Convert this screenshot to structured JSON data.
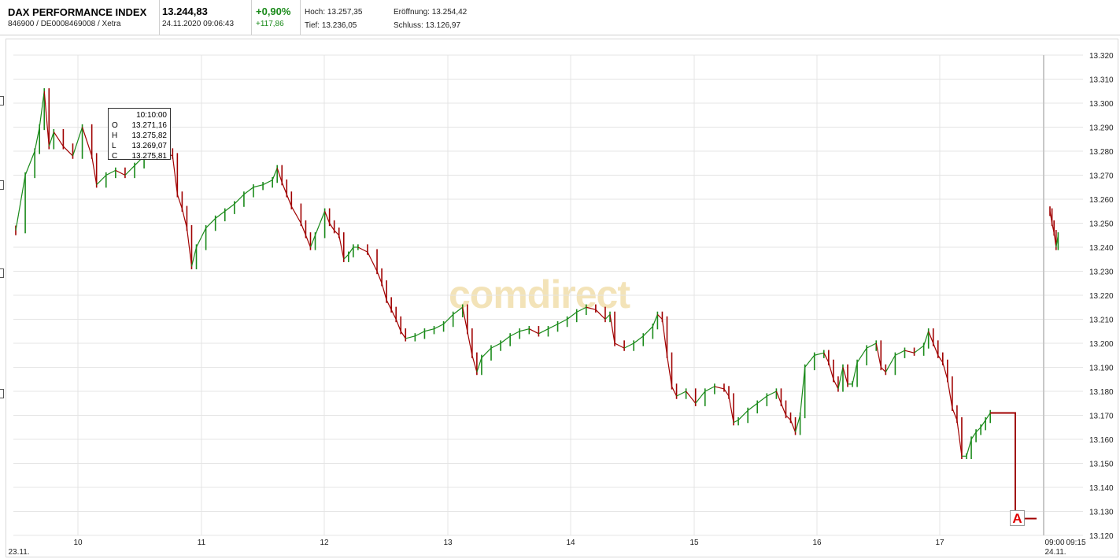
{
  "header": {
    "name": "DAX PERFORMANCE INDEX",
    "ids": "846900 / DE0008469008 / Xetra",
    "price": "13.244,83",
    "datetime": "24.11.2020 09:06:43",
    "change_pct": "+0,90%",
    "change_abs": "+117,86",
    "high": "Hoch: 13.257,35",
    "open": "Eröffnung: 13.254,42",
    "low": "Tief: 13.236,05",
    "close": "Schluss: 13.126,97"
  },
  "tooltip": {
    "time": "10:10:00",
    "o_label": "O",
    "o_value": "13.271,16",
    "h_label": "H",
    "h_value": "13.275,82",
    "l_label": "L",
    "l_value": "13.269,07",
    "c_label": "C",
    "c_value": "13.275,81"
  },
  "watermark": "comdirect",
  "marker": "A",
  "colors": {
    "up": "#1a8a1a",
    "down": "#a00000",
    "grid": "#e4e4e4"
  },
  "chart_data": {
    "type": "line",
    "subtype": "candlestick",
    "ylim": [
      13120,
      13320
    ],
    "y_ticks": [
      "13.120",
      "13.130",
      "13.140",
      "13.150",
      "13.160",
      "13.170",
      "13.180",
      "13.190",
      "13.200",
      "13.210",
      "13.220",
      "13.230",
      "13.240",
      "13.250",
      "13.260",
      "13.270",
      "13.280",
      "13.290",
      "13.300",
      "13.310",
      "13.320"
    ],
    "x_ticks": [
      "23.11.",
      "10",
      "11",
      "12",
      "13",
      "14",
      "15",
      "16",
      "17",
      "09:00",
      "09:15",
      "24.11."
    ],
    "grid": true,
    "series": [
      {
        "session": "23.11.",
        "points": [
          [
            0,
            13247
          ],
          [
            2,
            13270
          ],
          [
            4,
            13280
          ],
          [
            5,
            13290
          ],
          [
            6,
            13305
          ],
          [
            7,
            13282
          ],
          [
            8,
            13288
          ],
          [
            10,
            13282
          ],
          [
            12,
            13278
          ],
          [
            14,
            13290
          ],
          [
            16,
            13278
          ],
          [
            17,
            13266
          ],
          [
            19,
            13270
          ],
          [
            21,
            13272
          ],
          [
            23,
            13270
          ],
          [
            25,
            13274
          ],
          [
            27,
            13278
          ],
          [
            29,
            13280
          ],
          [
            31,
            13280
          ],
          [
            33,
            13278
          ],
          [
            34,
            13262
          ],
          [
            35,
            13256
          ],
          [
            36,
            13248
          ],
          [
            37,
            13232
          ],
          [
            38,
            13240
          ],
          [
            40,
            13248
          ],
          [
            42,
            13252
          ],
          [
            44,
            13255
          ],
          [
            46,
            13258
          ],
          [
            48,
            13262
          ],
          [
            50,
            13265
          ],
          [
            52,
            13266
          ],
          [
            54,
            13268
          ],
          [
            55,
            13273
          ],
          [
            56,
            13267
          ],
          [
            57,
            13262
          ],
          [
            58,
            13257
          ],
          [
            60,
            13250
          ],
          [
            61,
            13245
          ],
          [
            62,
            13240
          ],
          [
            63,
            13245
          ],
          [
            65,
            13255
          ],
          [
            66,
            13250
          ],
          [
            67,
            13247
          ],
          [
            68,
            13245
          ],
          [
            69,
            13235
          ],
          [
            70,
            13237
          ],
          [
            71,
            13240
          ],
          [
            72,
            13240
          ],
          [
            74,
            13238
          ],
          [
            76,
            13230
          ],
          [
            77,
            13225
          ],
          [
            78,
            13218
          ],
          [
            79,
            13214
          ],
          [
            80,
            13210
          ],
          [
            81,
            13205
          ],
          [
            82,
            13202
          ],
          [
            84,
            13203
          ],
          [
            86,
            13205
          ],
          [
            88,
            13206
          ],
          [
            90,
            13208
          ],
          [
            92,
            13212
          ],
          [
            94,
            13215
          ],
          [
            95,
            13205
          ],
          [
            96,
            13195
          ],
          [
            97,
            13188
          ],
          [
            98,
            13194
          ],
          [
            100,
            13198
          ],
          [
            102,
            13200
          ],
          [
            104,
            13203
          ],
          [
            106,
            13205
          ],
          [
            108,
            13206
          ],
          [
            110,
            13204
          ],
          [
            112,
            13206
          ],
          [
            114,
            13208
          ],
          [
            116,
            13210
          ],
          [
            118,
            13213
          ],
          [
            120,
            13215
          ],
          [
            122,
            13214
          ],
          [
            124,
            13210
          ],
          [
            125,
            13212
          ],
          [
            126,
            13200
          ],
          [
            128,
            13198
          ],
          [
            130,
            13200
          ],
          [
            132,
            13203
          ],
          [
            134,
            13207
          ],
          [
            135,
            13212
          ],
          [
            136,
            13210
          ],
          [
            137,
            13195
          ],
          [
            138,
            13182
          ],
          [
            139,
            13178
          ],
          [
            141,
            13180
          ],
          [
            143,
            13175
          ],
          [
            145,
            13180
          ],
          [
            147,
            13182
          ],
          [
            149,
            13181
          ],
          [
            150,
            13178
          ],
          [
            151,
            13167
          ],
          [
            152,
            13168
          ],
          [
            154,
            13172
          ],
          [
            156,
            13175
          ],
          [
            158,
            13178
          ],
          [
            160,
            13180
          ],
          [
            161,
            13175
          ],
          [
            162,
            13170
          ],
          [
            163,
            13168
          ],
          [
            164,
            13163
          ],
          [
            165,
            13170
          ],
          [
            166,
            13190
          ],
          [
            168,
            13195
          ],
          [
            170,
            13196
          ],
          [
            171,
            13192
          ],
          [
            172,
            13185
          ],
          [
            173,
            13181
          ],
          [
            174,
            13190
          ],
          [
            175,
            13183
          ],
          [
            176,
            13183
          ],
          [
            177,
            13192
          ],
          [
            179,
            13198
          ],
          [
            181,
            13200
          ],
          [
            182,
            13190
          ],
          [
            183,
            13188
          ],
          [
            185,
            13195
          ],
          [
            187,
            13197
          ],
          [
            189,
            13196
          ],
          [
            191,
            13199
          ],
          [
            192,
            13205
          ],
          [
            193,
            13200
          ],
          [
            194,
            13195
          ],
          [
            195,
            13192
          ],
          [
            196,
            13185
          ],
          [
            197,
            13173
          ],
          [
            198,
            13168
          ],
          [
            199,
            13153
          ],
          [
            200,
            13153
          ],
          [
            201,
            13160
          ],
          [
            202,
            13163
          ],
          [
            203,
            13165
          ],
          [
            204,
            13168
          ],
          [
            205,
            13171
          ]
        ]
      },
      {
        "session": "24.11.",
        "points": [
          [
            0,
            13255
          ],
          [
            1,
            13250
          ],
          [
            2,
            13246
          ],
          [
            3,
            13240
          ],
          [
            4,
            13245
          ]
        ]
      }
    ],
    "step_line": [
      [
        13171,
        13127
      ]
    ]
  }
}
